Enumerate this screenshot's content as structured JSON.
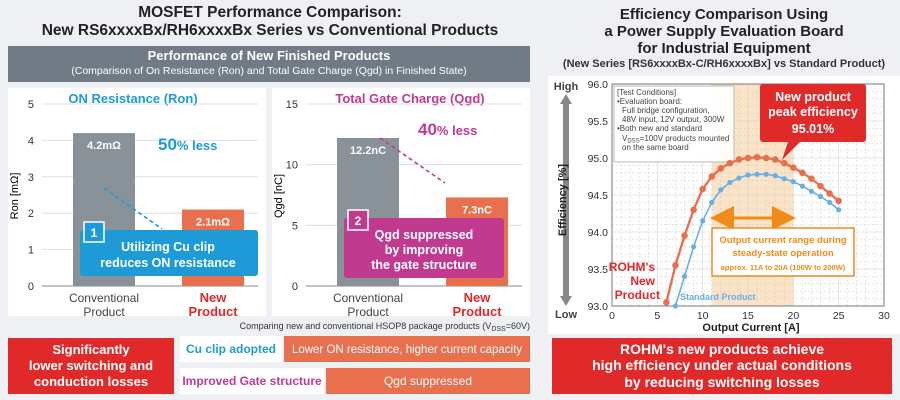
{
  "left_title": [
    "MOSFET Performance Comparison:",
    "New RS6xxxxBx/RH6xxxxBx Series vs Conventional Products"
  ],
  "performance_banner": {
    "title": "Performance of New Finished Products",
    "subtitle": "(Comparison of On Resistance (Ron) and Total Gate Charge (Qgd) in Finished State)"
  },
  "right_title": [
    "Efficiency Comparison Using",
    "a Power Supply Evaluation Board",
    "for Industrial Equipment"
  ],
  "right_subtitle": "(New Series [RS6xxxxBx-C/RH6xxxxBx] vs Standard Product)",
  "package_note": "Comparing new and conventional HSOP8 package products (V",
  "package_note_sub": "DSS",
  "package_note_end": "=60V)",
  "features": {
    "row1": {
      "tag": "Cu clip adopted",
      "result": "Lower ON resistance, higher current capacity"
    },
    "row2": {
      "tag": "Improved Gate structure",
      "result": "Qgd suppressed"
    }
  },
  "left_conclusion": [
    "Significantly",
    "lower switching and",
    "conduction losses"
  ],
  "right_conclusion": [
    "ROHM's new products achieve",
    "high efficiency under actual conditions",
    "by reducing switching losses"
  ],
  "colors": {
    "conventional": "#8a9299",
    "new": "#e8704f",
    "accent_blue": "#1e9bd7",
    "accent_pink": "#c03a8f",
    "red_box": "#e02a2a",
    "standard_line": "#6aaee8",
    "range_orange": "#f08b1a"
  },
  "chart_data": [
    {
      "type": "bar",
      "title": "ON Resistance (Ron)",
      "ylabel": "Ron [mΩ]",
      "ylim": [
        0,
        5
      ],
      "yticks": [
        0,
        1,
        2,
        3,
        4,
        5
      ],
      "categories": [
        "Conventional\nProduct",
        "New\nProduct"
      ],
      "values": [
        4.2,
        2.1
      ],
      "data_labels": [
        "4.2mΩ",
        "2.1mΩ"
      ],
      "reduction_label": "50",
      "reduction_unit": "% less",
      "callout_number": "1",
      "callout_text": [
        "Utilizing Cu clip",
        "reduces ON resistance"
      ]
    },
    {
      "type": "bar",
      "title": "Total Gate Charge (Qgd)",
      "ylabel": "Qgd [nC]",
      "ylim": [
        0,
        15
      ],
      "yticks": [
        0,
        5,
        10,
        15
      ],
      "categories": [
        "Conventional\nProduct",
        "New\nProduct"
      ],
      "values": [
        12.2,
        7.3
      ],
      "data_labels": [
        "12.2nC",
        "7.3nC"
      ],
      "reduction_label": "40",
      "reduction_unit": "% less",
      "callout_number": "2",
      "callout_text": [
        "Qgd suppressed",
        "by improving",
        "the gate structure"
      ]
    },
    {
      "type": "line",
      "xlabel": "Output Current [A]",
      "ylabel": "Efficiency [%]",
      "xlim": [
        0,
        30
      ],
      "ylim": [
        93.0,
        96.0
      ],
      "xticks": [
        0,
        5,
        10,
        15,
        20,
        25,
        30
      ],
      "yticks": [
        93.0,
        93.5,
        94.0,
        94.5,
        95.0,
        95.5,
        96.0
      ],
      "grid": true,
      "high_label": "High",
      "low_label": "Low",
      "series": [
        {
          "name": "ROHM's New Product",
          "x": [
            6,
            7,
            8,
            9,
            10,
            11,
            12,
            13,
            14,
            15,
            16,
            17,
            18,
            19,
            20,
            21,
            22,
            23,
            24,
            25
          ],
          "y": [
            93.05,
            93.55,
            93.95,
            94.3,
            94.58,
            94.75,
            94.86,
            94.93,
            94.98,
            95.0,
            95.01,
            95.0,
            94.98,
            94.93,
            94.87,
            94.8,
            94.72,
            94.62,
            94.52,
            94.42
          ]
        },
        {
          "name": "Standard Product",
          "x": [
            7,
            8,
            9,
            10,
            11,
            12,
            13,
            14,
            15,
            16,
            17,
            18,
            19,
            20,
            21,
            22,
            23,
            24,
            25
          ],
          "y": [
            93.0,
            93.4,
            93.8,
            94.15,
            94.4,
            94.57,
            94.67,
            94.73,
            94.77,
            94.78,
            94.78,
            94.76,
            94.72,
            94.68,
            94.62,
            94.55,
            94.48,
            94.4,
            94.3
          ]
        }
      ],
      "range_band": {
        "x": [
          11,
          20
        ]
      },
      "test_conditions": [
        "[Test Conditions]",
        "•Evaluation board:",
        "Full bridge configuration,",
        "48V input, 12V output, 300W",
        "•Both new and standard",
        "V",
        "DSS",
        "=100V products mounted",
        "on the same board"
      ],
      "peak_callout": [
        "New product",
        "peak efficiency",
        "95.01%"
      ],
      "range_callout": [
        "Output current range during",
        "steady-state operation",
        "approx. 11A to 20A (100W to 200W)"
      ]
    }
  ]
}
